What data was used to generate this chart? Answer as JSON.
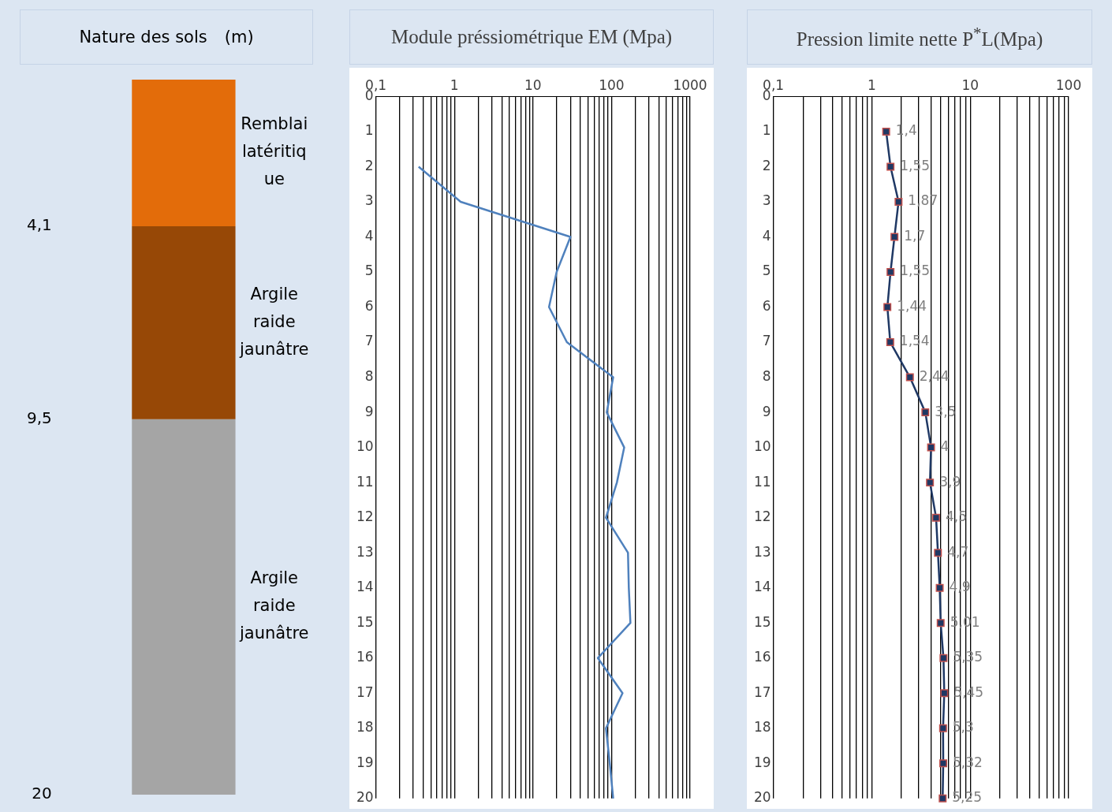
{
  "chart_data": [
    {
      "type": "bar",
      "title": "Nature des sols",
      "ylabel": "(m)",
      "categories": [
        null
      ],
      "stacked": true,
      "legend": false,
      "tick_labels": "y",
      "series": [
        {
          "name": "Remblai latéritique",
          "color": "#e36c0a",
          "values": [
            4.1
          ]
        },
        {
          "name": "Argile raide jaunâtre",
          "color": "#974806",
          "values": [
            5.4
          ]
        },
        {
          "name": "Argile raide jaunâtre",
          "color": "#a5a5a5",
          "values": [
            10.5
          ]
        }
      ],
      "ylim": [
        20,
        0
      ],
      "yticks": [
        {
          "value": 4.1,
          "label": "4,1"
        },
        {
          "value": 9.5,
          "label": "9,5"
        },
        20
      ]
    },
    {
      "type": "line",
      "title": "Module préssiométrique EM (Mpa)",
      "orientation": "horizontal",
      "log": "x",
      "grid": "x",
      "legend": false,
      "marker": "none",
      "categories": [
        "0",
        "1",
        "2",
        "3",
        "4",
        "5",
        "6",
        "7",
        "8",
        "9",
        "10",
        "11",
        "12",
        "13",
        "14",
        "15",
        "16",
        "17",
        "18",
        "19",
        "20"
      ],
      "series": [
        {
          "color": "#4f81bd",
          "values": [
            null,
            null,
            0.35,
            1.2,
            30,
            20,
            16,
            27,
            105,
            87,
            145,
            117,
            85,
            162,
            166,
            174,
            67,
            138,
            85,
            95,
            105
          ]
        }
      ],
      "xlim": [
        0.1,
        1000
      ],
      "xticks": [
        {
          "value": 0.1,
          "label": "0,1"
        },
        {
          "value": 0.2,
          "label": null
        },
        {
          "value": 0.3,
          "label": null
        },
        {
          "value": 0.4,
          "label": null
        },
        {
          "value": 0.5,
          "label": null
        },
        {
          "value": 0.6,
          "label": null
        },
        {
          "value": 0.7,
          "label": null
        },
        {
          "value": 0.8,
          "label": null
        },
        {
          "value": 0.9,
          "label": null
        },
        1,
        {
          "value": 2,
          "label": null
        },
        {
          "value": 3,
          "label": null
        },
        {
          "value": 4,
          "label": null
        },
        {
          "value": 5,
          "label": null
        },
        {
          "value": 6,
          "label": null
        },
        {
          "value": 7,
          "label": null
        },
        {
          "value": 8,
          "label": null
        },
        {
          "value": 9,
          "label": null
        },
        10,
        {
          "value": 20,
          "label": null
        },
        {
          "value": 30,
          "label": null
        },
        {
          "value": 40,
          "label": null
        },
        {
          "value": 50,
          "label": null
        },
        {
          "value": 60,
          "label": null
        },
        {
          "value": 70,
          "label": null
        },
        {
          "value": 80,
          "label": null
        },
        {
          "value": 90,
          "label": null
        },
        100,
        {
          "value": 200,
          "label": null
        },
        {
          "value": 300,
          "label": null
        },
        {
          "value": 400,
          "label": null
        },
        {
          "value": 500,
          "label": null
        },
        {
          "value": 600,
          "label": null
        },
        {
          "value": 700,
          "label": null
        },
        {
          "value": 800,
          "label": null
        },
        {
          "value": 900,
          "label": null
        },
        1000
      ]
    },
    {
      "type": "line",
      "title": "Pression limite nette P$^{*}$L(Mpa)",
      "orientation": "horizontal",
      "log": "x",
      "grid": "x",
      "legend": false,
      "marker": "square",
      "categories": [
        "0",
        "1",
        "2",
        "3",
        "4",
        "5",
        "6",
        "7",
        "8",
        "9",
        "10",
        "11",
        "12",
        "13",
        "14",
        "15",
        "16",
        "17",
        "18",
        "19",
        "20"
      ],
      "series": [
        {
          "color": "#1f3864",
          "values": [
            null,
            1.4,
            1.55,
            1.87,
            1.7,
            1.55,
            1.44,
            1.54,
            2.44,
            3.5,
            4,
            3.9,
            4.5,
            4.7,
            4.9,
            5.01,
            5.35,
            5.45,
            5.3,
            5.32,
            5.25
          ],
          "value_labels": [
            null,
            "1,4",
            "1,55",
            "1,87",
            "1,7",
            "1,55",
            "1,44",
            "1,54",
            "2,44",
            "3,5",
            "4",
            "3,9",
            "4,5",
            "4,7",
            "4,9",
            "5,01",
            "5,35",
            "5,45",
            "5,3",
            "5,32",
            "5,25"
          ]
        }
      ],
      "xlim": [
        0.1,
        100
      ],
      "xticks": [
        {
          "value": 0.1,
          "label": "0,1"
        },
        {
          "value": 0.2,
          "label": null
        },
        {
          "value": 0.3,
          "label": null
        },
        {
          "value": 0.4,
          "label": null
        },
        {
          "value": 0.5,
          "label": null
        },
        {
          "value": 0.6,
          "label": null
        },
        {
          "value": 0.7,
          "label": null
        },
        {
          "value": 0.8,
          "label": null
        },
        {
          "value": 0.9,
          "label": null
        },
        1,
        {
          "value": 2,
          "label": null
        },
        {
          "value": 3,
          "label": null
        },
        {
          "value": 4,
          "label": null
        },
        {
          "value": 5,
          "label": null
        },
        {
          "value": 6,
          "label": null
        },
        {
          "value": 7,
          "label": null
        },
        {
          "value": 8,
          "label": null
        },
        {
          "value": 9,
          "label": null
        },
        10,
        {
          "value": 20,
          "label": null
        },
        {
          "value": 30,
          "label": null
        },
        {
          "value": 40,
          "label": null
        },
        {
          "value": 50,
          "label": null
        },
        {
          "value": 60,
          "label": null
        },
        {
          "value": 70,
          "label": null
        },
        {
          "value": 80,
          "label": null
        },
        {
          "value": 90,
          "label": null
        },
        100
      ]
    }
  ]
}
